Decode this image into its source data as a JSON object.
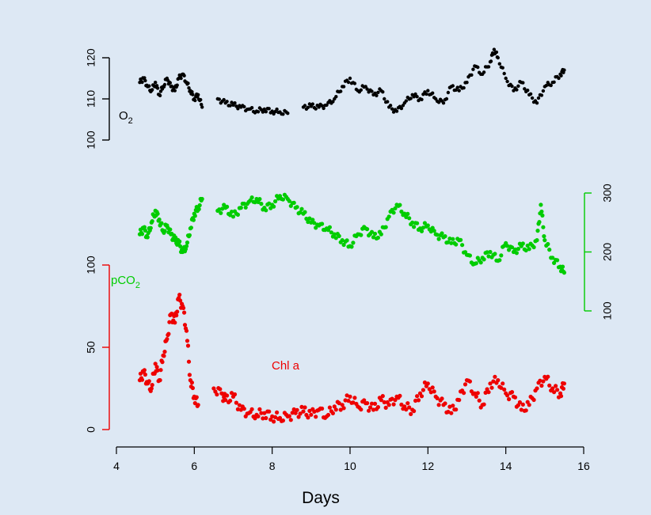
{
  "chart_data": {
    "type": "scatter",
    "xlabel": "Days",
    "xlim": [
      4,
      16
    ],
    "x_ticks": [
      "4",
      "6",
      "8",
      "10",
      "12",
      "14",
      "16"
    ],
    "grid": false,
    "series": [
      {
        "name": "O2",
        "name_sub": "2",
        "name_main": "O",
        "color": "#000000",
        "ylim": [
          100,
          120
        ],
        "y_ticks": [
          "100",
          "110",
          "120"
        ],
        "points": [
          [
            4.6,
            114
          ],
          [
            4.7,
            115
          ],
          [
            4.8,
            113
          ],
          [
            4.9,
            112
          ],
          [
            5.0,
            114
          ],
          [
            5.1,
            111
          ],
          [
            5.2,
            113
          ],
          [
            5.3,
            115
          ],
          [
            5.4,
            113
          ],
          [
            5.5,
            112
          ],
          [
            5.6,
            115
          ],
          [
            5.7,
            116
          ],
          [
            5.8,
            114
          ],
          [
            5.9,
            112
          ],
          [
            6.0,
            110
          ],
          [
            6.1,
            111
          ],
          [
            6.2,
            108
          ],
          [
            6.6,
            110
          ],
          [
            6.8,
            109
          ],
          [
            7.0,
            108.5
          ],
          [
            7.2,
            108
          ],
          [
            7.4,
            107.5
          ],
          [
            7.6,
            107
          ],
          [
            7.8,
            107.5
          ],
          [
            8.0,
            107
          ],
          [
            8.2,
            106.8
          ],
          [
            8.4,
            106.5
          ],
          [
            8.8,
            108
          ],
          [
            9.0,
            108.2
          ],
          [
            9.2,
            108
          ],
          [
            9.4,
            108.5
          ],
          [
            9.6,
            110
          ],
          [
            9.8,
            113
          ],
          [
            10.0,
            115
          ],
          [
            10.2,
            112
          ],
          [
            10.4,
            113
          ],
          [
            10.6,
            111
          ],
          [
            10.8,
            112
          ],
          [
            11.0,
            108
          ],
          [
            11.2,
            107
          ],
          [
            11.4,
            109
          ],
          [
            11.6,
            111
          ],
          [
            11.8,
            110
          ],
          [
            12.0,
            112
          ],
          [
            12.2,
            110
          ],
          [
            12.4,
            109
          ],
          [
            12.6,
            113
          ],
          [
            12.8,
            112
          ],
          [
            13.0,
            114
          ],
          [
            13.2,
            118
          ],
          [
            13.4,
            116
          ],
          [
            13.6,
            119
          ],
          [
            13.7,
            122
          ],
          [
            13.8,
            120
          ],
          [
            14.0,
            115
          ],
          [
            14.2,
            112
          ],
          [
            14.4,
            114
          ],
          [
            14.6,
            111
          ],
          [
            14.8,
            109
          ],
          [
            15.0,
            113
          ],
          [
            15.2,
            114
          ],
          [
            15.4,
            116
          ],
          [
            15.5,
            117
          ]
        ]
      },
      {
        "name": "pCO2",
        "name_sub": "2",
        "name_main": "pCO",
        "color": "#00cc00",
        "ylim": [
          100,
          300
        ],
        "y_ticks": [
          "100",
          "200",
          "300"
        ],
        "points": [
          [
            4.6,
            230
          ],
          [
            4.7,
            240
          ],
          [
            4.8,
            225
          ],
          [
            4.9,
            250
          ],
          [
            5.0,
            270
          ],
          [
            5.1,
            255
          ],
          [
            5.2,
            235
          ],
          [
            5.3,
            245
          ],
          [
            5.4,
            230
          ],
          [
            5.5,
            220
          ],
          [
            5.6,
            215
          ],
          [
            5.7,
            200
          ],
          [
            5.8,
            210
          ],
          [
            5.9,
            240
          ],
          [
            6.0,
            265
          ],
          [
            6.1,
            275
          ],
          [
            6.2,
            290
          ],
          [
            6.6,
            270
          ],
          [
            6.8,
            275
          ],
          [
            7.0,
            260
          ],
          [
            7.2,
            275
          ],
          [
            7.4,
            285
          ],
          [
            7.6,
            290
          ],
          [
            7.8,
            275
          ],
          [
            8.0,
            280
          ],
          [
            8.2,
            295
          ],
          [
            8.4,
            290
          ],
          [
            8.6,
            275
          ],
          [
            8.8,
            265
          ],
          [
            9.0,
            250
          ],
          [
            9.2,
            245
          ],
          [
            9.4,
            240
          ],
          [
            9.6,
            230
          ],
          [
            9.8,
            220
          ],
          [
            10.0,
            210
          ],
          [
            10.2,
            230
          ],
          [
            10.4,
            240
          ],
          [
            10.6,
            225
          ],
          [
            10.8,
            230
          ],
          [
            11.0,
            260
          ],
          [
            11.2,
            280
          ],
          [
            11.4,
            265
          ],
          [
            11.6,
            250
          ],
          [
            11.8,
            240
          ],
          [
            12.0,
            245
          ],
          [
            12.2,
            230
          ],
          [
            12.4,
            225
          ],
          [
            12.6,
            215
          ],
          [
            12.8,
            220
          ],
          [
            13.0,
            195
          ],
          [
            13.2,
            180
          ],
          [
            13.4,
            190
          ],
          [
            13.6,
            200
          ],
          [
            13.8,
            185
          ],
          [
            14.0,
            215
          ],
          [
            14.2,
            200
          ],
          [
            14.4,
            210
          ],
          [
            14.6,
            205
          ],
          [
            14.8,
            220
          ],
          [
            14.9,
            280
          ],
          [
            15.0,
            220
          ],
          [
            15.2,
            190
          ],
          [
            15.4,
            175
          ],
          [
            15.5,
            165
          ]
        ]
      },
      {
        "name": "Chl a",
        "color": "#ee0000",
        "ylim": [
          0,
          100
        ],
        "y_ticks": [
          "0",
          "50",
          "100"
        ],
        "points": [
          [
            4.6,
            30
          ],
          [
            4.7,
            35
          ],
          [
            4.8,
            28
          ],
          [
            4.9,
            25
          ],
          [
            5.0,
            40
          ],
          [
            5.1,
            30
          ],
          [
            5.2,
            45
          ],
          [
            5.3,
            55
          ],
          [
            5.4,
            70
          ],
          [
            5.5,
            65
          ],
          [
            5.6,
            80
          ],
          [
            5.7,
            75
          ],
          [
            5.8,
            60
          ],
          [
            5.9,
            30
          ],
          [
            6.0,
            20
          ],
          [
            6.1,
            15
          ],
          [
            6.5,
            25
          ],
          [
            6.7,
            22
          ],
          [
            6.8,
            18
          ],
          [
            7.0,
            20
          ],
          [
            7.2,
            12
          ],
          [
            7.4,
            10
          ],
          [
            7.6,
            9
          ],
          [
            7.8,
            10
          ],
          [
            8.0,
            8
          ],
          [
            8.2,
            7
          ],
          [
            8.4,
            8
          ],
          [
            8.6,
            10
          ],
          [
            8.8,
            11
          ],
          [
            9.0,
            9
          ],
          [
            9.2,
            12
          ],
          [
            9.4,
            8
          ],
          [
            9.6,
            14
          ],
          [
            9.8,
            15
          ],
          [
            10.0,
            20
          ],
          [
            10.2,
            14
          ],
          [
            10.4,
            16
          ],
          [
            10.6,
            12
          ],
          [
            10.8,
            18
          ],
          [
            11.0,
            15
          ],
          [
            11.2,
            20
          ],
          [
            11.4,
            14
          ],
          [
            11.6,
            12
          ],
          [
            11.8,
            22
          ],
          [
            12.0,
            28
          ],
          [
            12.2,
            20
          ],
          [
            12.4,
            15
          ],
          [
            12.6,
            10
          ],
          [
            12.8,
            18
          ],
          [
            13.0,
            30
          ],
          [
            13.2,
            22
          ],
          [
            13.4,
            15
          ],
          [
            13.6,
            28
          ],
          [
            13.8,
            30
          ],
          [
            14.0,
            22
          ],
          [
            14.2,
            20
          ],
          [
            14.4,
            12
          ],
          [
            14.6,
            15
          ],
          [
            14.8,
            25
          ],
          [
            15.0,
            32
          ],
          [
            15.2,
            25
          ],
          [
            15.4,
            22
          ],
          [
            15.5,
            28
          ]
        ]
      }
    ]
  }
}
